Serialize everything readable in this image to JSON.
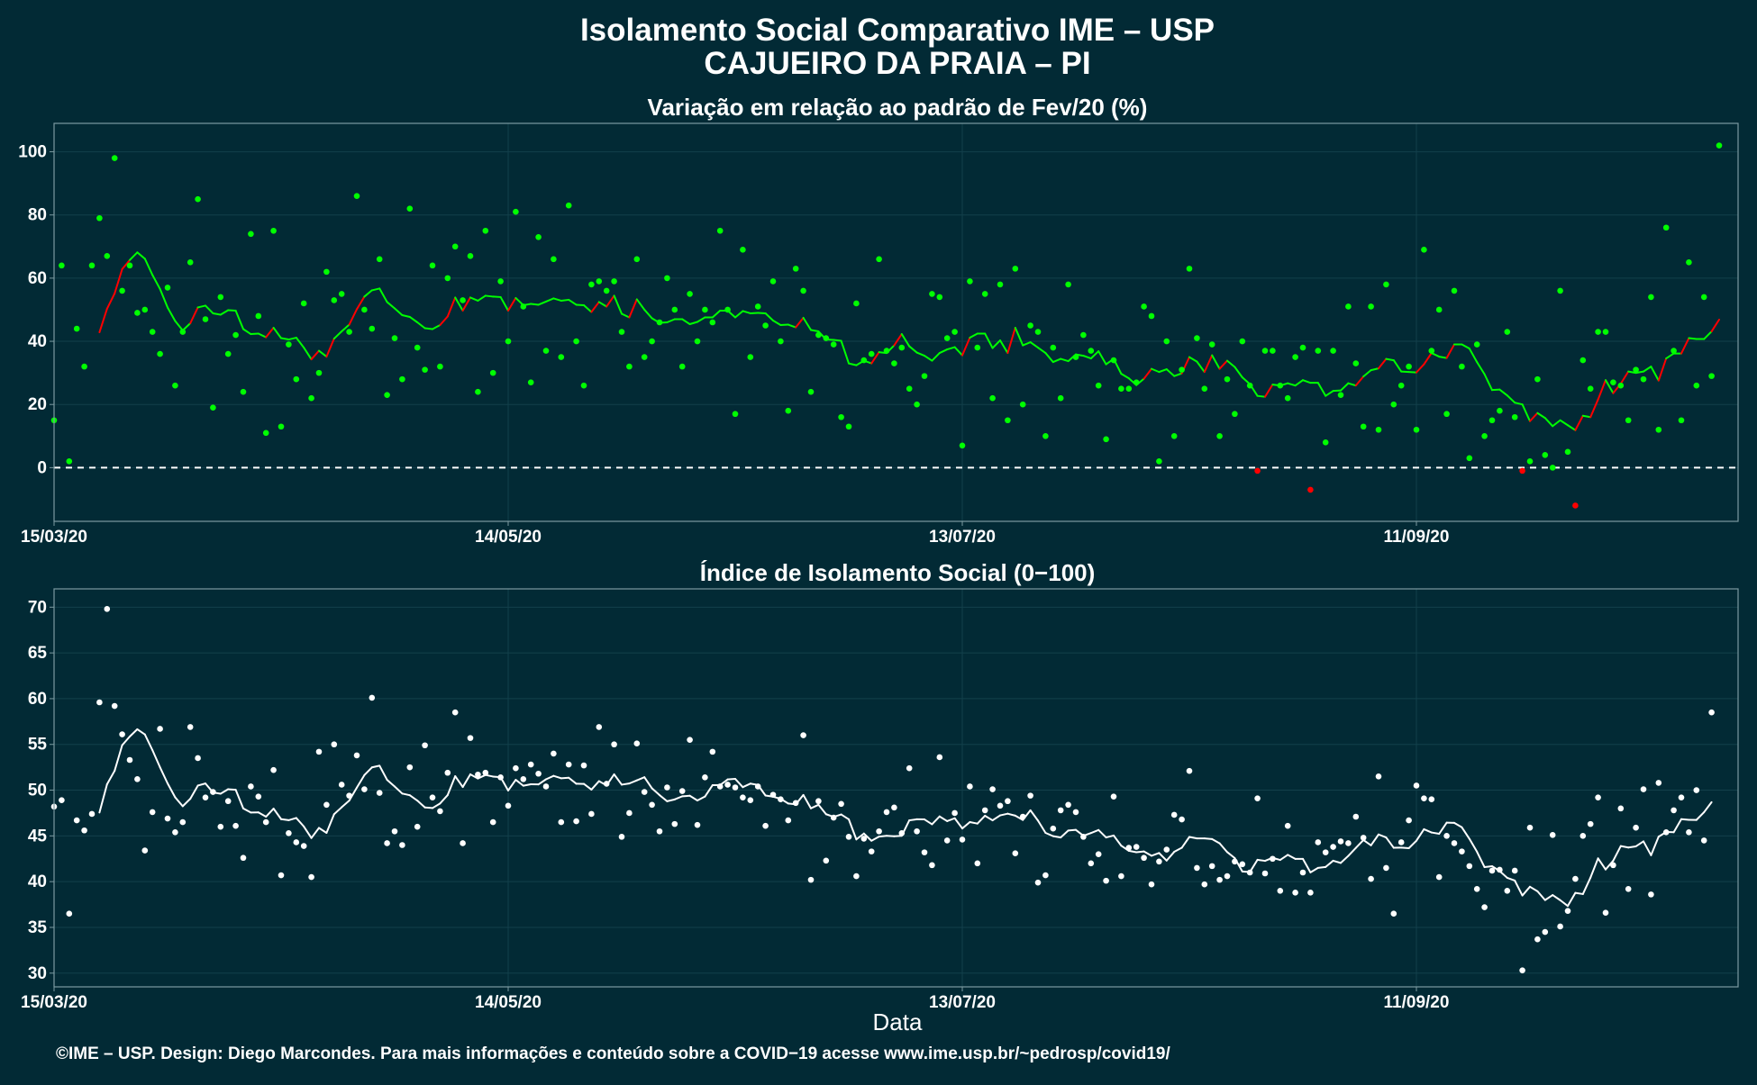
{
  "header": {
    "title_line1": "Isolamento Social Comparativo IME – USP",
    "title_line2": "CAJUEIRO DA PRAIA – PI"
  },
  "footer": {
    "text": "©IME – USP. Design: Diego Marcondes. Para mais informações e conteúdo sobre a COVID−19 acesse www.ime.usp.br/~pedrosp/covid19/"
  },
  "colors": {
    "background": "#022a35",
    "positive": "#00ff00",
    "negative": "#ff0000",
    "index": "#ffffff"
  },
  "chart_data": [
    {
      "type": "scatter",
      "title": "Variação em relação ao padrão de Fev/20 (%)",
      "xlabel": "",
      "ylabel": "",
      "x_start": "15/03/20",
      "x_ticks": [
        "15/03/20",
        "14/05/20",
        "13/07/20",
        "11/09/20"
      ],
      "y_ticks": [
        0,
        20,
        40,
        60,
        80,
        100
      ],
      "ylim": [
        -17,
        109
      ],
      "reference_line": 0,
      "series": [
        {
          "values": [
            15,
            64,
            2,
            44,
            32,
            64,
            79,
            67,
            98,
            56,
            64,
            49,
            50,
            43,
            36,
            57,
            26,
            43,
            65,
            85,
            47,
            19,
            54,
            36,
            42,
            24,
            74,
            48,
            11,
            75,
            13,
            39,
            28,
            52,
            22,
            30,
            62,
            53,
            55,
            43,
            86,
            50,
            44,
            66,
            23,
            41,
            28,
            82,
            38,
            31,
            64,
            32,
            60,
            70,
            53,
            67,
            24,
            75,
            30,
            59,
            40,
            81,
            51,
            27,
            73,
            37,
            66,
            35,
            83,
            40,
            26,
            58,
            59,
            56,
            59,
            43,
            32,
            66,
            35,
            40,
            46,
            60,
            50,
            32,
            55,
            40,
            50,
            46,
            75,
            50,
            17,
            69,
            35,
            51,
            45,
            59,
            40,
            18,
            63,
            56,
            24,
            42,
            41,
            39,
            16,
            13,
            52,
            34,
            36,
            66,
            37,
            33,
            38,
            25,
            20,
            29,
            55,
            54,
            41,
            43,
            7,
            59,
            38,
            55,
            22,
            58,
            15,
            63,
            20,
            45,
            43,
            10,
            38,
            22,
            58,
            35,
            42,
            37,
            26,
            9,
            34,
            25,
            25,
            27,
            51,
            48,
            2,
            40,
            10,
            31,
            63,
            41,
            25,
            39,
            10,
            28,
            17,
            40,
            26,
            -1,
            37,
            37,
            26,
            22,
            35,
            38,
            -7,
            37,
            8,
            37,
            23,
            51,
            33,
            13,
            51,
            12,
            58,
            20,
            26,
            32,
            12,
            69,
            37,
            50,
            17,
            56,
            32,
            3,
            39,
            10,
            15,
            18,
            43,
            16,
            -1,
            2,
            28,
            4,
            0,
            56,
            5,
            -12,
            34,
            25,
            43,
            43,
            27,
            26,
            15,
            31,
            28,
            54,
            12,
            76,
            37,
            15,
            65,
            26,
            54,
            29,
            102
          ]
        }
      ]
    },
    {
      "type": "scatter",
      "title": "Índice de Isolamento Social (0−100)",
      "xlabel": "Data",
      "ylabel": "",
      "x_start": "15/03/20",
      "x_ticks": [
        "15/03/20",
        "14/05/20",
        "13/07/20",
        "11/09/20"
      ],
      "y_ticks": [
        30,
        35,
        40,
        45,
        50,
        55,
        60,
        65,
        70
      ],
      "ylim": [
        28.5,
        72
      ],
      "series": [
        {
          "values": [
            48.2,
            48.9,
            36.5,
            46.7,
            45.6,
            47.4,
            59.6,
            69.8,
            59.2,
            56.1,
            53.3,
            51.2,
            43.4,
            47.6,
            56.7,
            46.9,
            45.4,
            46.5,
            56.9,
            53.5,
            49.2,
            49.8,
            46.0,
            48.8,
            46.1,
            42.6,
            50.4,
            49.3,
            46.5,
            52.2,
            40.7,
            45.3,
            44.3,
            43.9,
            40.5,
            54.2,
            48.4,
            55.0,
            50.6,
            49.4,
            53.8,
            50.1,
            60.1,
            49.7,
            44.2,
            45.5,
            44.0,
            52.5,
            46.0,
            54.9,
            49.2,
            47.7,
            51.9,
            58.5,
            44.2,
            55.7,
            51.7,
            51.9,
            46.5,
            51.4,
            48.3,
            52.4,
            51.2,
            52.8,
            51.8,
            50.4,
            54.0,
            46.5,
            52.8,
            46.6,
            52.7,
            47.4,
            56.9,
            50.7,
            55.0,
            44.9,
            47.5,
            55.1,
            49.8,
            48.4,
            45.5,
            50.3,
            46.3,
            49.9,
            55.5,
            46.2,
            51.4,
            54.2,
            50.4,
            50.6,
            50.3,
            49.2,
            48.9,
            50.4,
            46.1,
            49.5,
            49.0,
            46.7,
            48.6,
            56.0,
            40.2,
            48.8,
            42.3,
            47.0,
            48.5,
            44.9,
            40.6,
            44.7,
            43.3,
            45.5,
            47.6,
            48.1,
            45.3,
            52.4,
            45.5,
            43.2,
            41.8,
            53.6,
            44.5,
            47.5,
            44.6,
            50.4,
            42.0,
            47.8,
            50.1,
            48.3,
            48.8,
            43.1,
            47.1,
            49.4,
            39.9,
            40.7,
            45.8,
            47.8,
            48.4,
            47.6,
            44.9,
            42.0,
            43.0,
            40.1,
            49.3,
            40.6,
            43.7,
            43.8,
            42.6,
            39.7,
            42.2,
            43.5,
            47.3,
            46.8,
            52.1,
            41.5,
            39.7,
            41.7,
            40.2,
            40.6,
            42.2,
            41.9,
            41.0,
            49.1,
            40.9,
            42.5,
            39.0,
            46.1,
            38.8,
            41.0,
            38.8,
            44.3,
            43.2,
            43.8,
            44.4,
            44.2,
            47.1,
            44.8,
            40.3,
            51.5,
            41.5,
            36.5,
            44.3,
            46.7,
            50.5,
            49.1,
            49.0,
            40.5,
            45.0,
            44.2,
            43.3,
            41.7,
            39.2,
            37.2,
            41.2,
            41.3,
            39.0,
            41.2,
            30.3,
            45.9,
            33.7,
            34.5,
            45.1,
            35.1,
            36.8,
            40.3,
            45.0,
            46.3,
            49.2,
            36.6,
            41.8,
            48.0,
            39.2,
            45.9,
            50.1,
            38.6,
            50.8,
            45.4,
            47.8,
            49.2,
            45.4,
            50.0,
            44.5,
            58.5
          ]
        }
      ]
    }
  ]
}
